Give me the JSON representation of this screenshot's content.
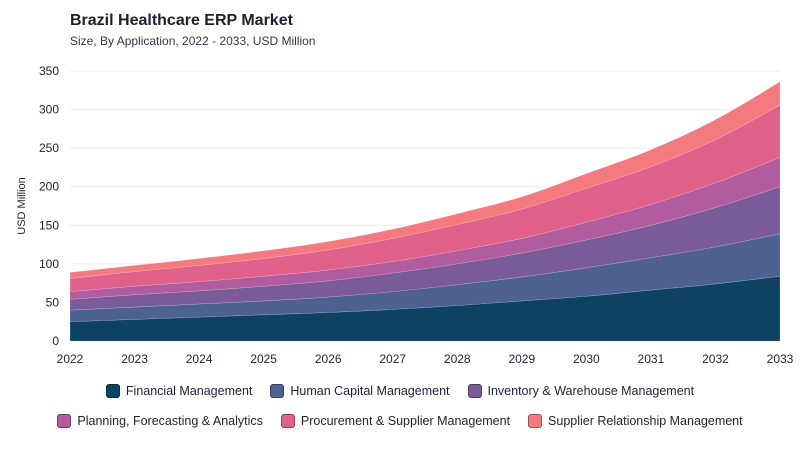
{
  "header": {
    "title": "Brazil Healthcare ERP Market",
    "subtitle": "Size, By Application, 2022 - 2033, USD Million"
  },
  "chart_data": {
    "type": "area",
    "stacked": true,
    "title": "Brazil Healthcare ERP Market",
    "subtitle": "Size, By Application, 2022 - 2033, USD Million",
    "xlabel": "",
    "ylabel": "USD Million",
    "ylim": [
      0,
      350
    ],
    "yticks": [
      0,
      50,
      100,
      150,
      200,
      250,
      300,
      350
    ],
    "grid": true,
    "legend_position": "bottom",
    "categories": [
      "2022",
      "2023",
      "2024",
      "2025",
      "2026",
      "2027",
      "2028",
      "2029",
      "2030",
      "2031",
      "2032",
      "2033"
    ],
    "series": [
      {
        "name": "Financial Management",
        "color": "#0e4263",
        "values": [
          25,
          28,
          31,
          34,
          37,
          41,
          46,
          52,
          58,
          66,
          74,
          84
        ]
      },
      {
        "name": "Human Capital Management",
        "color": "#4d6290",
        "values": [
          15,
          16,
          17,
          18,
          20,
          23,
          27,
          31,
          37,
          42,
          48,
          55
        ]
      },
      {
        "name": "Inventory & Warehouse Management",
        "color": "#7a5b9a",
        "values": [
          14,
          16,
          17,
          19,
          21,
          24,
          27,
          31,
          36,
          42,
          51,
          61
        ]
      },
      {
        "name": "Planning, Forecasting & Analytics",
        "color": "#b05c9e",
        "values": [
          10,
          11,
          12,
          13,
          14,
          15,
          17,
          19,
          23,
          27,
          32,
          38
        ]
      },
      {
        "name": "Procurement & Supplier Management",
        "color": "#e0618a",
        "values": [
          17,
          19,
          21,
          23,
          26,
          30,
          34,
          38,
          44,
          49,
          56,
          68
        ]
      },
      {
        "name": "Supplier Relationship Management",
        "color": "#f47a80",
        "values": [
          8,
          8,
          9,
          10,
          11,
          12,
          14,
          16,
          19,
          22,
          26,
          30
        ]
      }
    ]
  }
}
